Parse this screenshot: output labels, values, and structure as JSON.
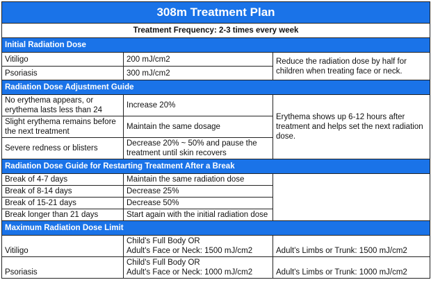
{
  "title": "308m Treatment Plan",
  "frequency": "Treatment Frequency: 2-3 times every week",
  "sections": {
    "initial": "Initial Radiation Dose",
    "adjust": "Radiation Dose Adjustment Guide",
    "restart": "Radiation Dose Guide for Restarting Treatment After a Break",
    "max": "Maximum Radiation Dose Limit"
  },
  "initial": {
    "rows": [
      {
        "label": "Vitiligo",
        "value": "200 mJ/cm2"
      },
      {
        "label": "Psoriasis",
        "value": "300 mJ/cm2"
      }
    ],
    "note": "Reduce the radiation dose by half for children when treating face or neck."
  },
  "adjust": {
    "rows": [
      {
        "label": "No erythema appears, or erythema lasts less than 24",
        "value": "Increase 20%"
      },
      {
        "label": "Slight erythema remains before the next treatment",
        "value": "Maintain the same dosage"
      },
      {
        "label": "Severe redness or blisters",
        "value": "Decrease 20% ~ 50% and pause the treatment until skin recovers"
      }
    ],
    "note": "Erythema shows up 6-12 hours after treatment and helps set the next radiation dose."
  },
  "restart": {
    "rows": [
      {
        "label": "Break of 4-7 days",
        "value": "Maintain the same radiation dose"
      },
      {
        "label": "Break of 8-14 days",
        "value": "Decrease 25%"
      },
      {
        "label": "Break of 15-21 days",
        "value": "Decrease 50%"
      },
      {
        "label": "Break longer than 21 days",
        "value": "Start again with the initial radiation dose"
      }
    ]
  },
  "max": {
    "rows": [
      {
        "label": "Vitiligo",
        "line1": "Child's Full Body OR",
        "line2": "Adult's Face or Neck: 1500 mJ/cm2",
        "note": "Adult's Limbs or Trunk: 1500 mJ/cm2"
      },
      {
        "label": "Psoriasis",
        "line1": "Child's Full Body OR",
        "line2": "Adult's Face or Neck: 1000 mJ/cm2",
        "note": "Adult's  Limbs or Trunk: 1000 mJ/cm2"
      }
    ]
  }
}
